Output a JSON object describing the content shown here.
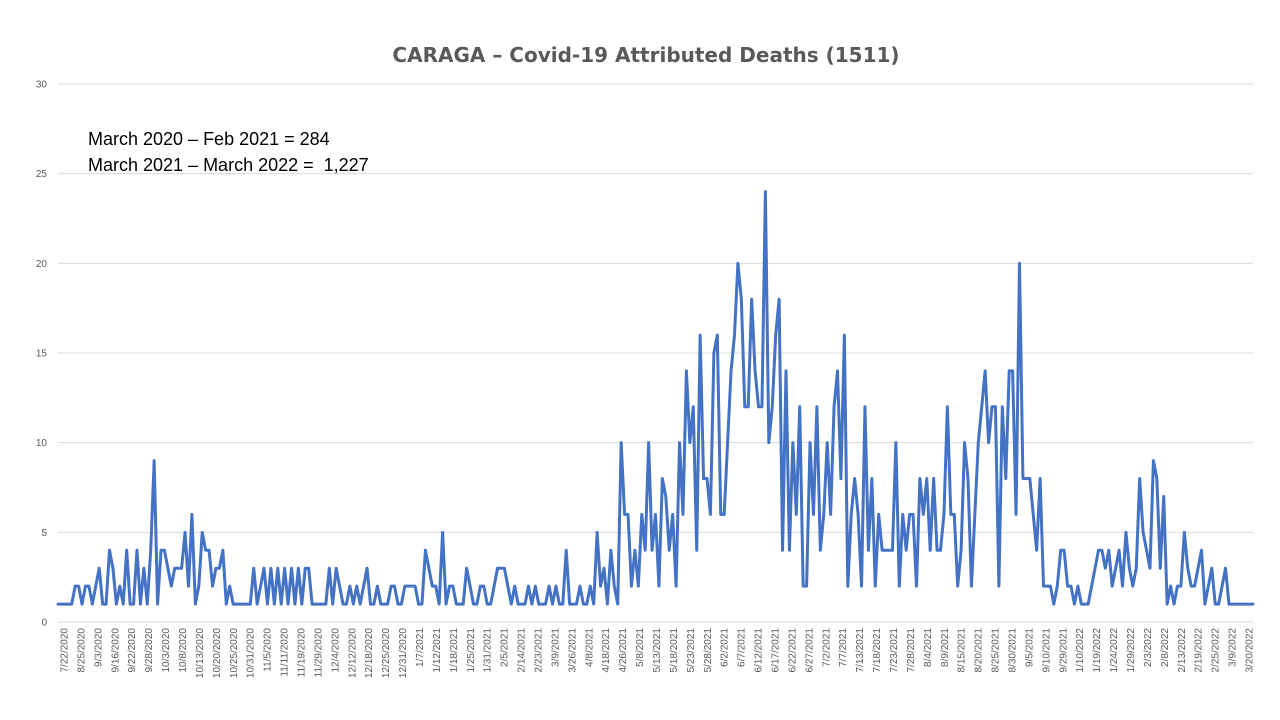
{
  "chart_data": {
    "type": "line",
    "title": "CARAGA – Covid-19 Attributed Deaths (1511)",
    "xlabel": "",
    "ylabel": "",
    "ylim": [
      0,
      30
    ],
    "yticks": [
      0,
      5,
      10,
      15,
      20,
      25,
      30
    ],
    "grid": true,
    "legend": "none",
    "annotations": [
      "March 2020 – Feb 2021 = 284",
      "March 2021 – March 2022 =  1,227"
    ],
    "series_color": "#4472c4",
    "x_tick_labels": [
      "7/22/2020",
      "8/25/2020",
      "9/3/2020",
      "9/16/2020",
      "9/22/2020",
      "9/28/2020",
      "10/3/2020",
      "10/8/2020",
      "10/13/2020",
      "10/20/2020",
      "10/25/2020",
      "10/31/2020",
      "11/5/2020",
      "11/11/2020",
      "11/19/2020",
      "11/29/2020",
      "12/4/2020",
      "12/12/2020",
      "12/18/2020",
      "12/25/2020",
      "12/31/2020",
      "1/7/2021",
      "1/12/2021",
      "1/18/2021",
      "1/25/2021",
      "1/31/2021",
      "2/5/2021",
      "2/14/2021",
      "2/23/2021",
      "3/9/2021",
      "3/26/2021",
      "4/8/2021",
      "4/18/2021",
      "4/26/2021",
      "5/8/2021",
      "5/13/2021",
      "5/18/2021",
      "5/23/2021",
      "5/28/2021",
      "6/2/2021",
      "6/7/2021",
      "6/12/2021",
      "6/17/2021",
      "6/22/2021",
      "6/27/2021",
      "7/2/2021",
      "7/7/2021",
      "7/13/2021",
      "7/18/2021",
      "7/23/2021",
      "7/28/2021",
      "8/4/2021",
      "8/9/2021",
      "8/15/2021",
      "8/20/2021",
      "8/25/2021",
      "8/30/2021",
      "9/5/2021",
      "9/10/2021",
      "9/29/2021",
      "1/10/2022",
      "1/19/2022",
      "1/24/2022",
      "1/29/2022",
      "2/3/2022",
      "2/8/2022",
      "2/13/2022",
      "2/19/2022",
      "2/25/2022",
      "3/9/2022",
      "3/20/2022"
    ],
    "series": [
      {
        "values": [
          1,
          1,
          1,
          1,
          1,
          2,
          2,
          1,
          2,
          2,
          1,
          2,
          3,
          1,
          1,
          4,
          3,
          1,
          2,
          1,
          4,
          1,
          1,
          4,
          1,
          3,
          1,
          4,
          9,
          1,
          4,
          4,
          3,
          2,
          3,
          3,
          3,
          5,
          2,
          6,
          1,
          2,
          5,
          4,
          4,
          2,
          3,
          3,
          4,
          1,
          2,
          1,
          1,
          1,
          1,
          1,
          1,
          3,
          1,
          2,
          3,
          1,
          3,
          1,
          3,
          1,
          3,
          1,
          3,
          1,
          3,
          1,
          3,
          3,
          1,
          1,
          1,
          1,
          1,
          3,
          1,
          3,
          2,
          1,
          1,
          2,
          1,
          2,
          1,
          2,
          3,
          1,
          1,
          2,
          1,
          1,
          1,
          2,
          2,
          1,
          1,
          2,
          2,
          2,
          2,
          1,
          1,
          4,
          3,
          2,
          2,
          1,
          5,
          1,
          2,
          2,
          1,
          1,
          1,
          3,
          2,
          1,
          1,
          2,
          2,
          1,
          1,
          2,
          3,
          3,
          3,
          2,
          1,
          2,
          1,
          1,
          1,
          2,
          1,
          2,
          1,
          1,
          1,
          2,
          1,
          2,
          1,
          1,
          4,
          1,
          1,
          1,
          2,
          1,
          1,
          2,
          1,
          5,
          2,
          3,
          1,
          4,
          2,
          1,
          10,
          6,
          6,
          2,
          4,
          2,
          6,
          4,
          10,
          4,
          6,
          2,
          8,
          7,
          4,
          6,
          2,
          10,
          6,
          14,
          10,
          12,
          4,
          16,
          8,
          8,
          6,
          15,
          16,
          6,
          6,
          10,
          14,
          16,
          20,
          18,
          12,
          12,
          18,
          14,
          12,
          12,
          24,
          10,
          12,
          16,
          18,
          4,
          14,
          4,
          10,
          6,
          12,
          2,
          2,
          10,
          6,
          12,
          4,
          6,
          10,
          6,
          12,
          14,
          8,
          16,
          2,
          6,
          8,
          6,
          2,
          12,
          4,
          8,
          2,
          6,
          4,
          4,
          4,
          4,
          10,
          2,
          6,
          4,
          6,
          6,
          2,
          8,
          6,
          8,
          4,
          8,
          4,
          4,
          6,
          12,
          6,
          6,
          2,
          4,
          10,
          8,
          2,
          6,
          10,
          12,
          14,
          10,
          12,
          12,
          2,
          12,
          8,
          14,
          14,
          6,
          20,
          8,
          8,
          8,
          6,
          4,
          8,
          2,
          2,
          2,
          1,
          2,
          4,
          4,
          2,
          2,
          1,
          2,
          1,
          1,
          1,
          2,
          3,
          4,
          4,
          3,
          4,
          2,
          3,
          4,
          2,
          5,
          3,
          2,
          3,
          8,
          5,
          4,
          3,
          9,
          8,
          3,
          7,
          1,
          2,
          1,
          2,
          2,
          5,
          3,
          2,
          2,
          3,
          4,
          1,
          2,
          3,
          1,
          1,
          2,
          3,
          1,
          1,
          1,
          1,
          1,
          1,
          1,
          1
        ]
      }
    ]
  }
}
